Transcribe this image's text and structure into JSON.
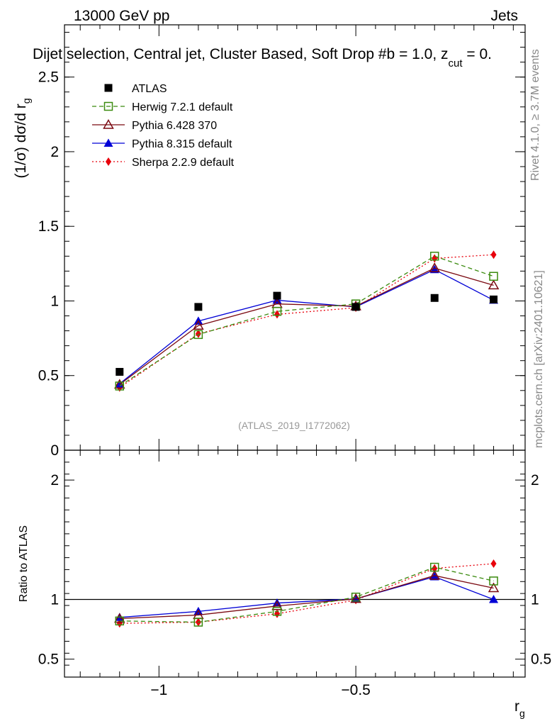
{
  "header": {
    "left": "13000 GeV pp",
    "right": "Jets",
    "title": "Dijet selection, Central jet, Cluster Based, Soft Drop #b = 1.0, z",
    "title_sub": "cut",
    "title_end": " = 0."
  },
  "side": {
    "rivet": "Rivet 4.1.0, ≥ 3.7M events",
    "mcplots": "mcplots.cern.ch [arXiv:2401.10621]"
  },
  "watermark": "(ATLAS_2019_I1772062)",
  "chart_data": [
    {
      "type": "line",
      "panel": "main",
      "ylabel": "(1/σ) dσ/d r",
      "ylabel_sub": "g",
      "xlim": [
        -1.24,
        -0.07
      ],
      "ylim": [
        0,
        2.85
      ],
      "yticks": [
        0,
        0.5,
        1,
        1.5,
        2,
        2.5
      ],
      "ytick_labels": [
        "0",
        "0.5",
        "1",
        "1.5",
        "2",
        "2.5"
      ],
      "x": [
        -1.1,
        -0.9,
        -0.7,
        -0.5,
        -0.3,
        -0.15
      ],
      "series": [
        {
          "name": "ATLAS",
          "color": "#000000",
          "marker": "square",
          "style": "none",
          "values": [
            0.525,
            0.96,
            1.035,
            0.96,
            1.02,
            1.01
          ]
        },
        {
          "name": "Herwig 7.2.1 default",
          "color": "#3a8a0e",
          "marker": "open-square",
          "style": "dashed",
          "values": [
            0.43,
            0.775,
            0.93,
            0.98,
            1.3,
            1.165
          ]
        },
        {
          "name": "Pythia 6.428 370",
          "color": "#7b0a12",
          "marker": "open-triangle",
          "style": "solid",
          "values": [
            0.44,
            0.835,
            0.98,
            0.965,
            1.22,
            1.105
          ]
        },
        {
          "name": "Pythia 8.315 default",
          "color": "#0000d6",
          "marker": "triangle",
          "style": "solid",
          "values": [
            0.445,
            0.865,
            1.005,
            0.96,
            1.21,
            1.005
          ]
        },
        {
          "name": "Sherpa 2.2.9 default",
          "color": "#e8000b",
          "marker": "diamond",
          "style": "dotted",
          "values": [
            0.42,
            0.78,
            0.91,
            0.955,
            1.285,
            1.31
          ]
        }
      ]
    },
    {
      "type": "line",
      "panel": "ratio",
      "ylabel": "Ratio to ATLAS",
      "xlabel": "r",
      "xlabel_sub": "g",
      "xlim": [
        -1.24,
        -0.07
      ],
      "ylim": [
        0.35,
        2.25
      ],
      "yticks": [
        0.5,
        1,
        2
      ],
      "ytick_labels": [
        "0.5",
        "1",
        "2"
      ],
      "xticks": [
        -1,
        -0.5
      ],
      "xtick_labels": [
        "−1",
        "−0.5"
      ],
      "x": [
        -1.1,
        -0.9,
        -0.7,
        -0.5,
        -0.3,
        -0.15
      ],
      "series": [
        {
          "name": "Herwig 7.2.1 default",
          "values": [
            0.82,
            0.81,
            0.9,
            1.02,
            1.27,
            1.155
          ]
        },
        {
          "name": "Pythia 6.428 370",
          "values": [
            0.84,
            0.87,
            0.945,
            1.005,
            1.2,
            1.095
          ]
        },
        {
          "name": "Pythia 8.315 default",
          "values": [
            0.85,
            0.9,
            0.97,
            1.005,
            1.19,
            1.0
          ]
        },
        {
          "name": "Sherpa 2.2.9 default",
          "values": [
            0.8,
            0.81,
            0.88,
            0.995,
            1.26,
            1.3
          ]
        }
      ]
    }
  ]
}
